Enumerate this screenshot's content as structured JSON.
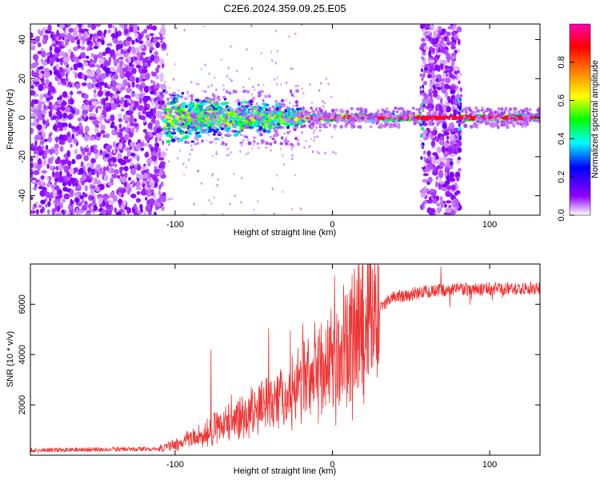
{
  "chart_data": [
    {
      "type": "heatmap",
      "title": "C2E6.2024.359.09.25.E05",
      "xlabel": "Height of straight line (km)",
      "ylabel": "Frequency (Hz)",
      "xlim": [
        -192,
        132
      ],
      "ylim": [
        -50,
        48
      ],
      "xticks": [
        -100,
        0,
        100
      ],
      "yticks": [
        -40,
        -20,
        0,
        20,
        40
      ],
      "colorbar": {
        "label": "Normalized spectral amplitude",
        "range": [
          0,
          1
        ],
        "ticks": [
          0.0,
          0.2,
          0.4,
          0.6,
          0.8
        ],
        "colors": [
          "#ffffff",
          "#9000ff",
          "#0000ff",
          "#00ffff",
          "#00ff00",
          "#ffff00",
          "#ff8000",
          "#ff0000",
          "#ff00b0"
        ]
      },
      "regions": {
        "noise_left": [
          -192,
          -107
        ],
        "signal_band": [
          -107,
          132
        ],
        "noise_bar": [
          57,
          81
        ]
      },
      "grid": false,
      "legend": "none"
    },
    {
      "type": "line",
      "xlabel": "Height of straight line (km)",
      "ylabel": "SNR (10 * v/v)",
      "xlim": [
        -192,
        132
      ],
      "ylim": [
        0,
        7600
      ],
      "xticks": [
        -100,
        0,
        100
      ],
      "yticks": [
        2000,
        4000,
        6000
      ],
      "series_color": "#ee3333",
      "profile": {
        "x": [
          -192,
          -110,
          -100,
          -80,
          -60,
          -40,
          -20,
          0,
          10,
          20,
          30,
          40,
          60,
          80,
          100,
          132
        ],
        "y": [
          200,
          250,
          400,
          900,
          1500,
          2000,
          2700,
          3800,
          4400,
          5200,
          5900,
          6300,
          6500,
          6600,
          6600,
          6650
        ]
      },
      "grid": false,
      "legend": "none"
    }
  ]
}
